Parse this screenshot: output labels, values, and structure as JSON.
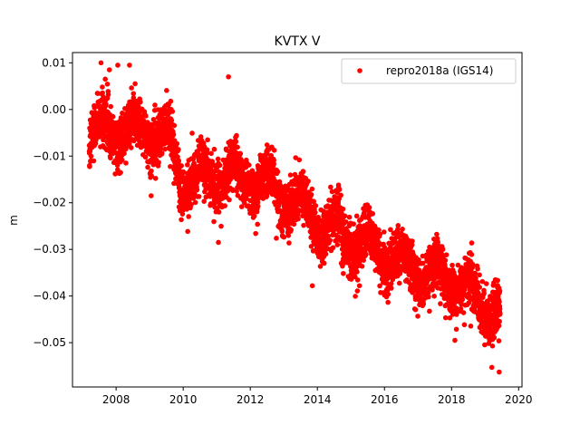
{
  "chart_data": {
    "type": "scatter",
    "title": "KVTX V",
    "xlabel": "",
    "ylabel": "m",
    "xlim": [
      2006.7,
      2020.1
    ],
    "ylim": [
      -0.0595,
      0.0122
    ],
    "xticks": [
      2008,
      2010,
      2012,
      2014,
      2016,
      2018,
      2020
    ],
    "xtick_labels": [
      "2008",
      "2010",
      "2012",
      "2014",
      "2016",
      "2018",
      "2020"
    ],
    "yticks": [
      0.01,
      0.0,
      -0.01,
      -0.02,
      -0.03,
      -0.04,
      -0.05
    ],
    "ytick_labels": [
      "0.01",
      "0.00",
      "−0.01",
      "−0.02",
      "−0.03",
      "−0.04",
      "−0.05"
    ],
    "grid": false,
    "legend_position": "top-right",
    "series": [
      {
        "name": "repro2018a (IGS14)",
        "color": "#ff0000",
        "marker": "circle",
        "x_range": [
          2007.2,
          2019.45
        ],
        "trend_points": [
          {
            "x": 2007.2,
            "y": -0.005
          },
          {
            "x": 2008.0,
            "y": -0.0045
          },
          {
            "x": 2009.0,
            "y": -0.005
          },
          {
            "x": 2009.5,
            "y": -0.0055
          },
          {
            "x": 2010.0,
            "y": -0.015
          },
          {
            "x": 2011.0,
            "y": -0.0145
          },
          {
            "x": 2012.0,
            "y": -0.014
          },
          {
            "x": 2013.0,
            "y": -0.018
          },
          {
            "x": 2014.0,
            "y": -0.024
          },
          {
            "x": 2015.0,
            "y": -0.028
          },
          {
            "x": 2016.0,
            "y": -0.031
          },
          {
            "x": 2017.0,
            "y": -0.035
          },
          {
            "x": 2018.0,
            "y": -0.036
          },
          {
            "x": 2019.0,
            "y": -0.042
          },
          {
            "x": 2019.45,
            "y": -0.044
          }
        ],
        "scatter_spread_m": 0.0045,
        "annual_amplitude_m": 0.003,
        "extreme_points": [
          {
            "x": 2007.55,
            "y": 0.01
          },
          {
            "x": 2007.8,
            "y": 0.0085
          },
          {
            "x": 2008.05,
            "y": 0.0095
          },
          {
            "x": 2008.4,
            "y": 0.0095
          },
          {
            "x": 2011.05,
            "y": -0.0285
          },
          {
            "x": 2011.35,
            "y": 0.007
          },
          {
            "x": 2013.85,
            "y": -0.0378
          },
          {
            "x": 2018.1,
            "y": -0.0495
          },
          {
            "x": 2019.2,
            "y": -0.0553
          },
          {
            "x": 2019.42,
            "y": -0.0563
          }
        ]
      }
    ]
  }
}
